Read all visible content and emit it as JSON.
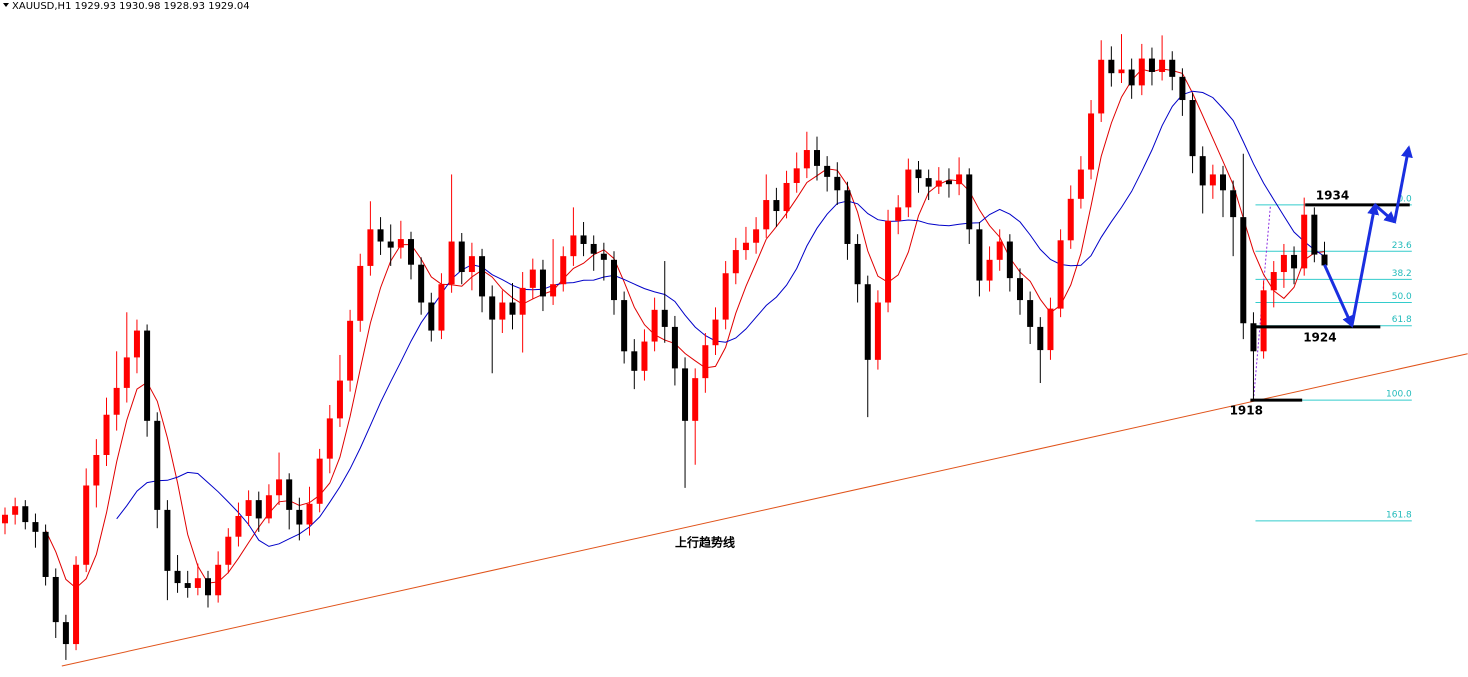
{
  "chart_data": {
    "type": "candlestick",
    "title": "XAUUSD,H1  1929.93 1930.98 1928.93 1929.04",
    "ylim": [
      1895.3,
      1950.8
    ],
    "up_color": "#ff0000",
    "down_color": "#000000",
    "open": [
      1907.9,
      1908.6,
      1909.3,
      1908.0,
      1907.2,
      1903.5,
      1899.8,
      1898.0,
      1904.5,
      1911.0,
      1913.5,
      1916.8,
      1919.0,
      1921.5,
      1923.7,
      1916.3,
      1909.0,
      1904.0,
      1903.0,
      1902.6,
      1903.4,
      1902.0,
      1904.5,
      1906.8,
      1908.5,
      1909.8,
      1908.3,
      1910.2,
      1911.5,
      1909.0,
      1907.8,
      1909.5,
      1913.2,
      1916.5,
      1919.6,
      1924.5,
      1929.0,
      1932.0,
      1931.0,
      1930.5,
      1931.2,
      1929.1,
      1926.0,
      1923.7,
      1927.5,
      1931.0,
      1928.5,
      1929.8,
      1926.5,
      1924.6,
      1926.0,
      1925.0,
      1927.2,
      1928.7,
      1926.5,
      1927.5,
      1929.8,
      1931.5,
      1930.8,
      1930.0,
      1929.5,
      1926.2,
      1922.0,
      1920.4,
      1922.8,
      1925.4,
      1924.0,
      1920.6,
      1916.3,
      1919.8,
      1922.5,
      1924.6,
      1928.4,
      1930.3,
      1930.9,
      1932.0,
      1934.4,
      1933.5,
      1935.8,
      1937.0,
      1938.5,
      1937.2,
      1936.3,
      1935.2,
      1930.8,
      1927.5,
      1921.3,
      1926.0,
      1932.7,
      1933.8,
      1936.9,
      1936.2,
      1935.5,
      1936.0,
      1935.7,
      1936.5,
      1932.0,
      1927.8,
      1929.5,
      1931.0,
      1928.0,
      1926.2,
      1924.0,
      1922.1,
      1925.5,
      1931.1,
      1934.5,
      1936.9,
      1941.5,
      1945.9,
      1944.8,
      1945.1,
      1943.8,
      1946.0,
      1944.9,
      1945.9,
      1944.5,
      1942.6,
      1938.0,
      1935.6,
      1936.5,
      1935.2,
      1933.0,
      1924.3,
      1922.0,
      1927.0,
      1928.5,
      1929.9,
      1928.8,
      1933.2,
      1929.93
    ],
    "high": [
      1909.2,
      1910.0,
      1909.8,
      1908.7,
      1907.8,
      1904.2,
      1900.4,
      1905.2,
      1912.4,
      1914.8,
      1918.2,
      1922.0,
      1925.2,
      1924.6,
      1924.2,
      1917.0,
      1909.8,
      1905.3,
      1904.0,
      1904.6,
      1904.0,
      1905.6,
      1907.5,
      1909.6,
      1910.6,
      1910.5,
      1911.1,
      1913.7,
      1912.0,
      1910.0,
      1910.9,
      1914.0,
      1917.6,
      1921.7,
      1925.4,
      1930.0,
      1934.3,
      1933.0,
      1932.4,
      1932.7,
      1931.8,
      1929.7,
      1926.8,
      1928.4,
      1936.5,
      1931.7,
      1930.9,
      1930.4,
      1927.4,
      1927.0,
      1927.6,
      1928.5,
      1929.6,
      1929.5,
      1931.2,
      1930.6,
      1933.8,
      1932.6,
      1931.5,
      1930.9,
      1930.2,
      1926.9,
      1923.0,
      1923.8,
      1926.4,
      1929.4,
      1924.9,
      1921.5,
      1920.6,
      1923.5,
      1925.6,
      1929.4,
      1931.3,
      1932.2,
      1933.0,
      1936.5,
      1935.4,
      1936.8,
      1938.3,
      1940.0,
      1939.6,
      1938.0,
      1937.5,
      1935.9,
      1931.6,
      1928.2,
      1927.0,
      1933.6,
      1934.8,
      1937.8,
      1937.6,
      1936.9,
      1937.1,
      1937.0,
      1937.9,
      1937.0,
      1932.6,
      1930.6,
      1932.0,
      1931.6,
      1928.8,
      1926.9,
      1924.8,
      1926.4,
      1932.0,
      1935.6,
      1938.0,
      1942.6,
      1947.5,
      1947.0,
      1948.0,
      1946.0,
      1947.2,
      1946.9,
      1947.9,
      1946.6,
      1945.2,
      1943.2,
      1938.8,
      1937.3,
      1937.2,
      1936.0,
      1938.2,
      1925.2,
      1927.8,
      1929.4,
      1930.8,
      1930.6,
      1934.6,
      1933.8,
      1930.98
    ],
    "low": [
      1907.0,
      1907.8,
      1907.4,
      1905.9,
      1902.8,
      1898.5,
      1896.7,
      1897.5,
      1903.9,
      1909.2,
      1912.6,
      1915.5,
      1917.8,
      1920.2,
      1915.0,
      1907.5,
      1901.6,
      1902.2,
      1901.8,
      1902.0,
      1901.0,
      1901.4,
      1903.8,
      1906.0,
      1907.7,
      1907.2,
      1907.9,
      1909.4,
      1907.4,
      1906.5,
      1906.9,
      1908.8,
      1912.0,
      1915.8,
      1918.7,
      1923.6,
      1928.2,
      1929.9,
      1929.0,
      1929.6,
      1927.9,
      1925.0,
      1922.8,
      1923.0,
      1926.8,
      1927.5,
      1927.0,
      1925.2,
      1920.2,
      1923.5,
      1923.8,
      1921.9,
      1926.3,
      1925.3,
      1925.8,
      1926.9,
      1929.0,
      1929.8,
      1928.6,
      1927.8,
      1925.0,
      1921.0,
      1918.9,
      1919.6,
      1922.0,
      1922.7,
      1919.2,
      1910.8,
      1912.7,
      1918.6,
      1921.7,
      1923.8,
      1927.5,
      1929.5,
      1930.0,
      1931.3,
      1932.2,
      1932.9,
      1935.0,
      1936.2,
      1936.0,
      1935.1,
      1934.0,
      1929.5,
      1926.0,
      1916.6,
      1920.5,
      1925.2,
      1931.6,
      1933.0,
      1935.0,
      1934.4,
      1934.9,
      1934.6,
      1934.8,
      1930.8,
      1926.5,
      1926.9,
      1928.6,
      1926.9,
      1925.0,
      1922.6,
      1919.4,
      1921.3,
      1924.8,
      1930.4,
      1933.7,
      1936.1,
      1940.8,
      1943.7,
      1944.0,
      1942.7,
      1943.0,
      1943.8,
      1944.2,
      1943.4,
      1941.3,
      1936.6,
      1933.3,
      1934.5,
      1933.0,
      1929.8,
      1923.0,
      1918.0,
      1921.4,
      1925.6,
      1927.2,
      1927.5,
      1928.2,
      1929.3,
      1928.93
    ],
    "close": [
      1908.6,
      1909.3,
      1908.0,
      1907.2,
      1903.5,
      1899.8,
      1898.0,
      1904.5,
      1911.0,
      1913.5,
      1916.8,
      1919.0,
      1921.5,
      1923.7,
      1916.3,
      1909.0,
      1904.0,
      1903.0,
      1902.6,
      1903.4,
      1902.0,
      1904.5,
      1906.8,
      1908.5,
      1909.8,
      1908.3,
      1910.2,
      1911.5,
      1909.0,
      1907.8,
      1909.5,
      1913.2,
      1916.5,
      1919.6,
      1924.5,
      1929.0,
      1932.0,
      1931.0,
      1930.5,
      1931.2,
      1929.1,
      1926.0,
      1923.7,
      1927.5,
      1931.0,
      1928.5,
      1929.8,
      1926.5,
      1924.6,
      1926.0,
      1925.0,
      1927.2,
      1928.7,
      1926.5,
      1927.5,
      1929.8,
      1931.5,
      1930.8,
      1930.0,
      1929.5,
      1926.2,
      1922.0,
      1920.4,
      1922.8,
      1925.4,
      1924.0,
      1920.6,
      1916.3,
      1919.8,
      1922.5,
      1924.6,
      1928.4,
      1930.3,
      1930.9,
      1932.0,
      1934.4,
      1933.5,
      1935.8,
      1937.0,
      1938.5,
      1937.2,
      1936.3,
      1935.2,
      1930.8,
      1927.5,
      1921.3,
      1926.0,
      1932.7,
      1933.8,
      1936.9,
      1936.2,
      1935.5,
      1936.0,
      1935.7,
      1936.5,
      1932.0,
      1927.8,
      1929.5,
      1931.0,
      1928.0,
      1926.2,
      1924.0,
      1922.1,
      1925.5,
      1931.1,
      1934.5,
      1936.9,
      1941.5,
      1945.9,
      1944.8,
      1945.1,
      1943.8,
      1946.0,
      1944.9,
      1945.9,
      1944.5,
      1942.6,
      1938.0,
      1935.6,
      1936.5,
      1935.2,
      1933.0,
      1924.3,
      1922.0,
      1927.0,
      1928.5,
      1929.9,
      1928.8,
      1933.2,
      1929.93,
      1929.04
    ],
    "fibonacci": {
      "color": "#33cccc",
      "x": [
        123.2,
        138.6
      ],
      "levels": [
        {
          "value": 1934.0,
          "label": "0.0"
        },
        {
          "value": 1930.2,
          "label": "23.6"
        },
        {
          "value": 1927.9,
          "label": "38.2"
        },
        {
          "value": 1926.0,
          "label": "50.0"
        },
        {
          "value": 1924.1,
          "label": "61.8"
        },
        {
          "value": 1918.0,
          "label": "100.0"
        },
        {
          "value": 1908.1,
          "label": "161.8"
        }
      ]
    },
    "levels": [
      {
        "value": 1934,
        "x": [
          128.1,
          138.4
        ]
      },
      {
        "value": 1924,
        "x": [
          123.2,
          135.5
        ]
      },
      {
        "value": 1918,
        "x": [
          122.7,
          127.8
        ]
      }
    ],
    "trendline": {
      "label": "上行趋势线",
      "color": "#e0531a",
      "x": [
        5.6,
        144.1
      ],
      "y": [
        1896.2,
        1921.8
      ]
    },
    "projection": {
      "color": "#1a2fe0",
      "x": [
        130,
        132.7,
        134.97,
        136.9,
        138.3
      ],
      "y": [
        1929.1,
        1924.1,
        1934.0,
        1932.6,
        1938.7
      ]
    }
  }
}
